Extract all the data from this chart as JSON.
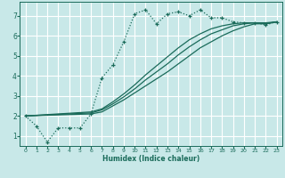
{
  "xlabel": "Humidex (Indice chaleur)",
  "bg_color": "#c8e8e8",
  "grid_color": "#ffffff",
  "line_color": "#1a6b5a",
  "xlim": [
    -0.5,
    23.5
  ],
  "ylim": [
    0.5,
    7.7
  ],
  "xticks": [
    0,
    1,
    2,
    3,
    4,
    5,
    6,
    7,
    8,
    9,
    10,
    11,
    12,
    13,
    14,
    15,
    16,
    17,
    18,
    19,
    20,
    21,
    22,
    23
  ],
  "yticks": [
    1,
    2,
    3,
    4,
    5,
    6,
    7
  ],
  "series1_x": [
    0,
    1,
    2,
    3,
    4,
    5,
    6,
    7,
    8,
    9,
    10,
    11,
    12,
    13,
    14,
    15,
    16,
    17,
    18,
    19,
    20,
    21,
    22,
    23
  ],
  "series1_y": [
    2.0,
    1.5,
    0.7,
    1.4,
    1.4,
    1.4,
    2.1,
    3.9,
    4.55,
    5.7,
    7.1,
    7.3,
    6.6,
    7.1,
    7.2,
    7.0,
    7.3,
    6.9,
    6.9,
    6.7,
    6.65,
    6.65,
    6.55,
    6.7
  ],
  "series2_x": [
    0,
    6,
    7,
    8,
    9,
    10,
    11,
    12,
    13,
    14,
    15,
    16,
    17,
    18,
    19,
    20,
    21,
    22,
    23
  ],
  "series2_y": [
    2.0,
    2.1,
    2.2,
    2.5,
    2.8,
    3.15,
    3.5,
    3.85,
    4.2,
    4.6,
    5.0,
    5.4,
    5.7,
    6.0,
    6.25,
    6.45,
    6.6,
    6.6,
    6.7
  ],
  "series3_x": [
    0,
    6,
    7,
    8,
    9,
    10,
    11,
    12,
    13,
    14,
    15,
    16,
    17,
    18,
    19,
    20,
    21,
    22,
    23
  ],
  "series3_y": [
    2.0,
    2.15,
    2.3,
    2.6,
    2.95,
    3.35,
    3.8,
    4.2,
    4.6,
    5.05,
    5.45,
    5.8,
    6.1,
    6.3,
    6.5,
    6.6,
    6.65,
    6.65,
    6.7
  ],
  "series4_x": [
    0,
    6,
    7,
    8,
    9,
    10,
    11,
    12,
    13,
    14,
    15,
    16,
    17,
    18,
    19,
    20,
    21,
    22,
    23
  ],
  "series4_y": [
    2.0,
    2.2,
    2.35,
    2.7,
    3.1,
    3.55,
    4.05,
    4.5,
    4.95,
    5.4,
    5.8,
    6.1,
    6.35,
    6.5,
    6.6,
    6.65,
    6.65,
    6.6,
    6.7
  ]
}
